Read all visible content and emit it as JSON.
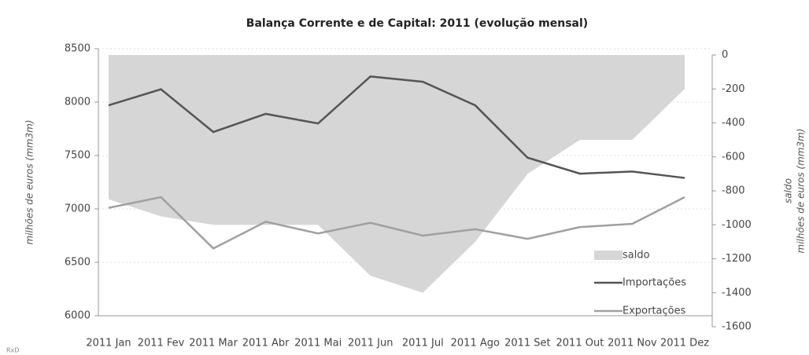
{
  "chart_data": {
    "type": "line",
    "title": "Balança Corrente e de Capital: 2011 (evolução mensal)",
    "y_label": "milhões de euros (mm3m)",
    "y2_label": [
      "saldo",
      "milhões de euros (mm3m)"
    ],
    "note": "RxD",
    "categories": [
      "2011 Jan",
      "2011 Fev",
      "2011 Mar",
      "2011 Abr",
      "2011 Mai",
      "2011 Jun",
      "2011 Jul",
      "2011 Ago",
      "2011 Set",
      "2011 Out",
      "2011 Nov",
      "2011 Dez"
    ],
    "series": [
      {
        "name": "saldo",
        "type": "area",
        "axis": "y2",
        "color": "#d6d6d6",
        "values": [
          -850,
          -950,
          -1000,
          -1000,
          -1000,
          -1300,
          -1400,
          -1100,
          -700,
          -500,
          -500,
          -200
        ]
      },
      {
        "name": "Importações",
        "type": "line",
        "color": "#555555",
        "values": [
          7970,
          8120,
          7720,
          7890,
          7800,
          8240,
          8190,
          7970,
          7480,
          7330,
          7350,
          7290
        ]
      },
      {
        "name": "Exportações",
        "type": "line",
        "color": "#a0a0a0",
        "values": [
          7010,
          7110,
          6630,
          6880,
          6770,
          6870,
          6750,
          6810,
          6720,
          6830,
          6860,
          7110
        ]
      }
    ],
    "ylim": [
      6000,
      8500
    ],
    "yticks": [
      6000,
      6500,
      7000,
      7500,
      8000,
      8500
    ],
    "y2lim": [
      -1600,
      0
    ],
    "y2ticks": [
      -1600,
      -1400,
      -1200,
      -1000,
      -800,
      -600,
      -400,
      -200,
      0
    ],
    "grid": true,
    "legend": "bottom-right"
  }
}
